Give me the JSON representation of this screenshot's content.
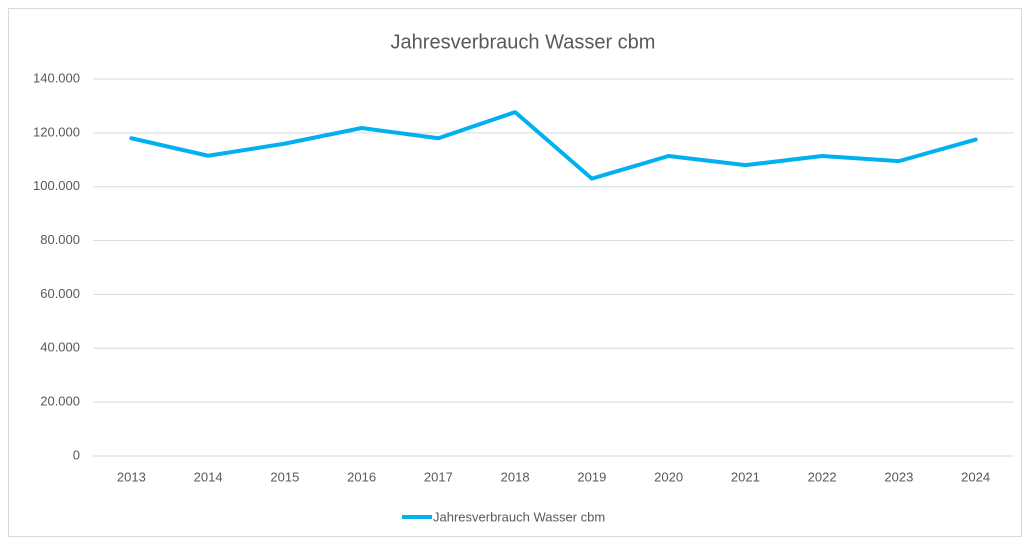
{
  "chart_data": {
    "type": "line",
    "title": "Jahresverbrauch Wasser cbm",
    "categories": [
      "2013",
      "2014",
      "2015",
      "2016",
      "2017",
      "2018",
      "2019",
      "2020",
      "2021",
      "2022",
      "2023",
      "2024"
    ],
    "series": [
      {
        "name": "Jahresverbrauch Wasser cbm",
        "color": "#00b0f0",
        "values": [
          118000,
          111500,
          116000,
          121800,
          118000,
          127700,
          103000,
          111400,
          108000,
          111400,
          109500,
          117500
        ]
      }
    ],
    "ylim": [
      0,
      140000
    ],
    "yticks": [
      0,
      {
        "value": 20000,
        "label": "20.000"
      },
      {
        "value": 40000,
        "label": "40.000"
      },
      {
        "value": 60000,
        "label": "60.000"
      },
      {
        "value": 80000,
        "label": "80.000"
      },
      {
        "value": 100000,
        "label": "100.000"
      },
      {
        "value": 120000,
        "label": "120.000"
      },
      {
        "value": 140000,
        "label": "140.000"
      }
    ],
    "grid": true,
    "legend": "bottom"
  }
}
